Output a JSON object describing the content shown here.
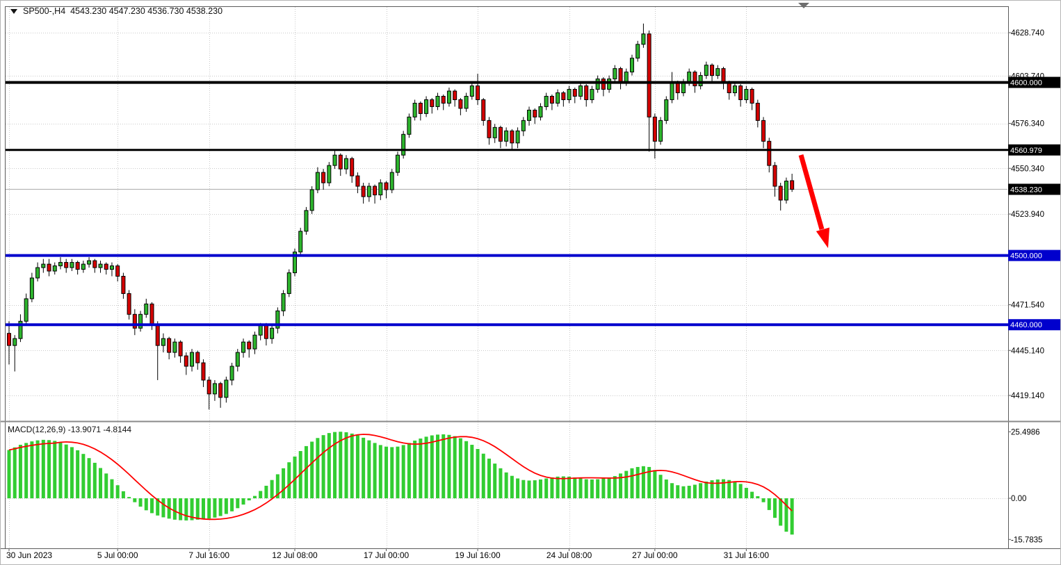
{
  "colors": {
    "background": "#FFFFFF",
    "bull": "#2DB52D",
    "bear": "#D40000",
    "outline": "#000000",
    "grid": "#C9C9C9",
    "frame": "#5A5A5A",
    "splitter": "#8A8A8A",
    "level_black": "#000000",
    "level_blue": "#0000CD",
    "current_price_line": "#A8A8A8",
    "badge_text": "#FFFFFF",
    "arrow": "#FF0000"
  },
  "icons": {
    "symbol_marker": "triangle-down",
    "chart_shift_marker": "triangle-down"
  },
  "title": {
    "text": "SP500-,H4  4543.230 4547.230 4536.730 4538.230",
    "symbol": "SP500-",
    "timeframe": "H4"
  },
  "indicator": {
    "label": "MACD(12,26,9) -13.9071 -4.8144",
    "name": "MACD",
    "params": "12,26,9",
    "macd_value": "-13.9071",
    "signal_value": "-4.8144"
  },
  "chart_data": [
    {
      "type": "candlestick",
      "symbol": "SP500-",
      "timeframe": "H4",
      "current_bar": {
        "open": 4543.23,
        "high": 4547.23,
        "low": 4536.73,
        "close": 4538.23
      },
      "y_axis": {
        "tick_values": [
          4628.74,
          4603.74,
          4576.34,
          4550.34,
          4523.94,
          4471.54,
          4445.14,
          4419.14
        ],
        "tick_labels": [
          "4628.740",
          "4603.740",
          "4576.340",
          "4550.340",
          "4523.940",
          "4471.540",
          "4445.140",
          "4419.140"
        ]
      },
      "x_ticks": [
        {
          "i": 0,
          "label": "30 Jun 2023"
        },
        {
          "i": 19,
          "label": "5 Jul 00:00"
        },
        {
          "i": 35,
          "label": "7 Jul 16:00"
        },
        {
          "i": 50,
          "label": "12 Jul 08:00"
        },
        {
          "i": 66,
          "label": "17 Jul 00:00"
        },
        {
          "i": 82,
          "label": "19 Jul 16:00"
        },
        {
          "i": 98,
          "label": "24 Jul 08:00"
        },
        {
          "i": 113,
          "label": "27 Jul 00:00"
        },
        {
          "i": 129,
          "label": "31 Jul 16:00"
        }
      ],
      "levels": [
        {
          "value": 4600.0,
          "label": "4600.000",
          "color": "#000000",
          "thickness": 4
        },
        {
          "value": 4560.979,
          "label": "4560.979",
          "color": "#000000",
          "thickness": 3
        },
        {
          "value": 4500.0,
          "label": "4500.000",
          "color": "#0000CD",
          "thickness": 4
        },
        {
          "value": 4460.0,
          "label": "4460.000",
          "color": "#0000CD",
          "thickness": 4
        }
      ],
      "current_price": {
        "value": 4538.23,
        "label": "4538.230",
        "badge_color": "#000000"
      },
      "annotation_arrow": {
        "type": "arrow-down-right",
        "color": "#FF0000"
      },
      "candles": [
        [
          4455,
          4462,
          4437,
          4448
        ],
        [
          4448,
          4454,
          4433,
          4452
        ],
        [
          4452,
          4466,
          4450,
          4462
        ],
        [
          4462,
          4478,
          4460,
          4475
        ],
        [
          4475,
          4490,
          4473,
          4487
        ],
        [
          4487,
          4496,
          4485,
          4493
        ],
        [
          4493,
          4498,
          4490,
          4495
        ],
        [
          4495,
          4498,
          4488,
          4491
        ],
        [
          4491,
          4496,
          4489,
          4494
        ],
        [
          4494,
          4499,
          4492,
          4496
        ],
        [
          4496,
          4498,
          4490,
          4493
        ],
        [
          4493,
          4498,
          4491,
          4496
        ],
        [
          4496,
          4497,
          4489,
          4492
        ],
        [
          4492,
          4497,
          4490,
          4495
        ],
        [
          4495,
          4499,
          4493,
          4497
        ],
        [
          4497,
          4498,
          4490,
          4493
        ],
        [
          4493,
          4497,
          4490,
          4495
        ],
        [
          4495,
          4496,
          4489,
          4492
        ],
        [
          4492,
          4496,
          4488,
          4494
        ],
        [
          4494,
          4495,
          4485,
          4488
        ],
        [
          4488,
          4490,
          4475,
          4478
        ],
        [
          4478,
          4480,
          4463,
          4466
        ],
        [
          4466,
          4469,
          4454,
          4458
        ],
        [
          4458,
          4468,
          4456,
          4466
        ],
        [
          4466,
          4475,
          4464,
          4472
        ],
        [
          4472,
          4473,
          4457,
          4460
        ],
        [
          4460,
          4462,
          4428,
          4448
        ],
        [
          4448,
          4455,
          4444,
          4452
        ],
        [
          4452,
          4453,
          4440,
          4444
        ],
        [
          4444,
          4452,
          4441,
          4450
        ],
        [
          4450,
          4451,
          4438,
          4442
        ],
        [
          4442,
          4444,
          4431,
          4436
        ],
        [
          4436,
          4446,
          4433,
          4444
        ],
        [
          4444,
          4445,
          4434,
          4438
        ],
        [
          4438,
          4440,
          4424,
          4428
        ],
        [
          4428,
          4430,
          4411,
          4420
        ],
        [
          4420,
          4428,
          4416,
          4426
        ],
        [
          4426,
          4427,
          4412,
          4418
        ],
        [
          4418,
          4430,
          4415,
          4428
        ],
        [
          4428,
          4438,
          4425,
          4436
        ],
        [
          4436,
          4446,
          4433,
          4444
        ],
        [
          4444,
          4452,
          4441,
          4450
        ],
        [
          4450,
          4451,
          4441,
          4446
        ],
        [
          4446,
          4456,
          4443,
          4454
        ],
        [
          4454,
          4461,
          4451,
          4460
        ],
        [
          4460,
          4461,
          4448,
          4452
        ],
        [
          4452,
          4460,
          4449,
          4458
        ],
        [
          4458,
          4470,
          4455,
          4468
        ],
        [
          4468,
          4480,
          4465,
          4478
        ],
        [
          4478,
          4492,
          4476,
          4490
        ],
        [
          4490,
          4504,
          4488,
          4502
        ],
        [
          4502,
          4516,
          4500,
          4514
        ],
        [
          4514,
          4528,
          4512,
          4526
        ],
        [
          4526,
          4540,
          4524,
          4538
        ],
        [
          4538,
          4551,
          4536,
          4548
        ],
        [
          4548,
          4550,
          4538,
          4542
        ],
        [
          4542,
          4554,
          4540,
          4552
        ],
        [
          4552,
          4561,
          4550,
          4558
        ],
        [
          4558,
          4559,
          4546,
          4550
        ],
        [
          4550,
          4558,
          4547,
          4556
        ],
        [
          4556,
          4557,
          4542,
          4546
        ],
        [
          4546,
          4548,
          4536,
          4540
        ],
        [
          4540,
          4542,
          4530,
          4534
        ],
        [
          4534,
          4542,
          4531,
          4540
        ],
        [
          4540,
          4541,
          4530,
          4535
        ],
        [
          4535,
          4544,
          4532,
          4542
        ],
        [
          4542,
          4543,
          4533,
          4538
        ],
        [
          4538,
          4550,
          4536,
          4548
        ],
        [
          4548,
          4560,
          4546,
          4558
        ],
        [
          4558,
          4572,
          4556,
          4570
        ],
        [
          4570,
          4582,
          4568,
          4580
        ],
        [
          4580,
          4590,
          4578,
          4588
        ],
        [
          4588,
          4589,
          4578,
          4582
        ],
        [
          4582,
          4592,
          4580,
          4590
        ],
        [
          4590,
          4591,
          4582,
          4586
        ],
        [
          4586,
          4594,
          4584,
          4592
        ],
        [
          4592,
          4593,
          4584,
          4588
        ],
        [
          4588,
          4597,
          4586,
          4595
        ],
        [
          4595,
          4596,
          4586,
          4590
        ],
        [
          4590,
          4591,
          4581,
          4585
        ],
        [
          4585,
          4594,
          4583,
          4592
        ],
        [
          4592,
          4600,
          4590,
          4598
        ],
        [
          4598,
          4605,
          4587,
          4590
        ],
        [
          4590,
          4591,
          4575,
          4578
        ],
        [
          4578,
          4580,
          4564,
          4568
        ],
        [
          4568,
          4576,
          4565,
          4574
        ],
        [
          4574,
          4575,
          4562,
          4566
        ],
        [
          4566,
          4574,
          4563,
          4572
        ],
        [
          4572,
          4573,
          4561,
          4565
        ],
        [
          4565,
          4574,
          4562,
          4572
        ],
        [
          4572,
          4580,
          4569,
          4578
        ],
        [
          4578,
          4586,
          4575,
          4584
        ],
        [
          4584,
          4585,
          4576,
          4580
        ],
        [
          4580,
          4588,
          4578,
          4586
        ],
        [
          4586,
          4594,
          4584,
          4592
        ],
        [
          4592,
          4593,
          4584,
          4588
        ],
        [
          4588,
          4596,
          4586,
          4594
        ],
        [
          4594,
          4595,
          4586,
          4590
        ],
        [
          4590,
          4598,
          4588,
          4596
        ],
        [
          4596,
          4597,
          4588,
          4592
        ],
        [
          4592,
          4600,
          4590,
          4598
        ],
        [
          4598,
          4599,
          4586,
          4590
        ],
        [
          4590,
          4598,
          4588,
          4596
        ],
        [
          4596,
          4604,
          4594,
          4602
        ],
        [
          4602,
          4603,
          4592,
          4596
        ],
        [
          4596,
          4604,
          4594,
          4602
        ],
        [
          4602,
          4610,
          4600,
          4608
        ],
        [
          4608,
          4609,
          4596,
          4600
        ],
        [
          4600,
          4608,
          4598,
          4606
        ],
        [
          4606,
          4616,
          4604,
          4614
        ],
        [
          4614,
          4624,
          4612,
          4622
        ],
        [
          4622,
          4634,
          4620,
          4628
        ],
        [
          4628,
          4630,
          4560,
          4580
        ],
        [
          4580,
          4582,
          4556,
          4566
        ],
        [
          4566,
          4580,
          4564,
          4578
        ],
        [
          4578,
          4592,
          4576,
          4590
        ],
        [
          4590,
          4606,
          4588,
          4600
        ],
        [
          4600,
          4601,
          4590,
          4594
        ],
        [
          4594,
          4602,
          4592,
          4600
        ],
        [
          4600,
          4608,
          4598,
          4606
        ],
        [
          4606,
          4607,
          4594,
          4598
        ],
        [
          4598,
          4606,
          4596,
          4604
        ],
        [
          4604,
          4612,
          4602,
          4610
        ],
        [
          4610,
          4611,
          4600,
          4604
        ],
        [
          4604,
          4610,
          4602,
          4608
        ],
        [
          4608,
          4609,
          4596,
          4600
        ],
        [
          4600,
          4601,
          4590,
          4594
        ],
        [
          4594,
          4600,
          4592,
          4598
        ],
        [
          4598,
          4599,
          4586,
          4590
        ],
        [
          4590,
          4598,
          4588,
          4596
        ],
        [
          4596,
          4597,
          4584,
          4588
        ],
        [
          4588,
          4590,
          4574,
          4578
        ],
        [
          4578,
          4580,
          4562,
          4566
        ],
        [
          4566,
          4568,
          4548,
          4552
        ],
        [
          4552,
          4554,
          4534,
          4540
        ],
        [
          4540,
          4542,
          4526,
          4532
        ],
        [
          4532,
          4545,
          4530,
          4543
        ],
        [
          4543.23,
          4547.23,
          4536.73,
          4538.23
        ]
      ]
    },
    {
      "type": "bar",
      "name": "MACD",
      "params": "12,26,9",
      "macd_value": -13.9071,
      "signal_value": -4.8144,
      "signal_period": 9,
      "bar_color": "#32CD32",
      "signal_color": "#FF0000",
      "scale": {
        "tick_values": [
          25.4986,
          0,
          -15.7835
        ],
        "tick_labels": [
          "25.4986",
          "0.00",
          "-15.7835"
        ]
      },
      "histogram": [
        18.5,
        19.5,
        20.5,
        21.2,
        21.8,
        22.2,
        22.4,
        22.3,
        22.0,
        21.4,
        20.6,
        19.6,
        18.4,
        17.0,
        15.4,
        13.6,
        11.6,
        9.5,
        7.3,
        5.0,
        2.7,
        0.5,
        -1.5,
        -3.2,
        -4.6,
        -5.7,
        -6.6,
        -7.3,
        -7.8,
        -8.2,
        -8.4,
        -8.5,
        -8.4,
        -8.2,
        -8.0,
        -7.8,
        -7.4,
        -6.8,
        -6.0,
        -5.0,
        -3.8,
        -2.4,
        -0.8,
        0.9,
        2.8,
        4.8,
        7.0,
        9.2,
        11.5,
        13.8,
        16.0,
        18.1,
        20.0,
        21.7,
        23.1,
        24.2,
        25.0,
        25.4,
        25.5,
        25.3,
        24.8,
        24.1,
        23.2,
        22.2,
        21.2,
        20.4,
        19.8,
        19.6,
        19.8,
        20.4,
        21.2,
        22.1,
        22.9,
        23.6,
        24.1,
        24.4,
        24.5,
        24.3,
        23.8,
        23.0,
        21.9,
        20.5,
        18.9,
        17.1,
        15.2,
        13.3,
        11.5,
        9.9,
        8.6,
        7.6,
        7.0,
        6.8,
        6.9,
        7.2,
        7.6,
        8.0,
        8.3,
        8.4,
        8.3,
        8.0,
        7.6,
        7.3,
        7.2,
        7.3,
        7.6,
        8.0,
        8.5,
        9.5,
        10.5,
        11.5,
        12.0,
        12.3,
        12.0,
        10.8,
        9.0,
        7.2,
        5.8,
        5.0,
        4.6,
        4.8,
        5.2,
        5.8,
        6.4,
        6.9,
        7.2,
        7.3,
        7.0,
        6.4,
        5.5,
        4.0,
        2.5,
        0.8,
        -1.5,
        -4.5,
        -7.5,
        -10.5,
        -12.8,
        -13.9071
      ]
    }
  ]
}
